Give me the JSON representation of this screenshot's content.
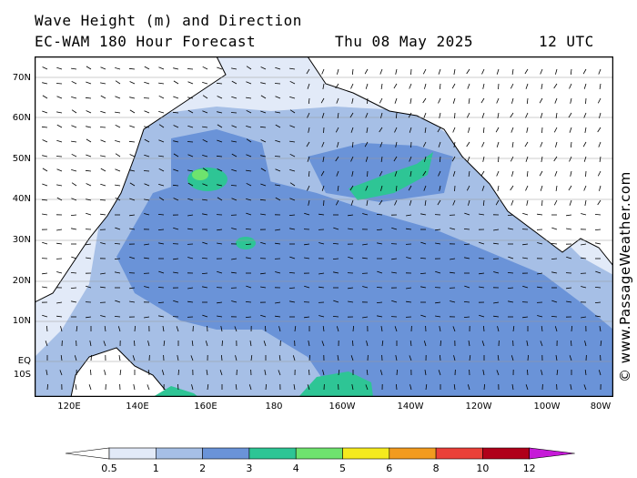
{
  "header": {
    "title_line1": "Wave Height (m) and Direction",
    "title_line2": "EC-WAM 180 Hour Forecast",
    "date": "Thu 08 May 2025",
    "time": "12 UTC"
  },
  "map": {
    "lat_labels": [
      "70N",
      "60N",
      "50N",
      "40N",
      "30N",
      "20N",
      "10N",
      "EQ",
      "10S"
    ],
    "lon_labels": [
      "120E",
      "140E",
      "160E",
      "180",
      "160W",
      "140W",
      "120W",
      "100W",
      "80W"
    ],
    "credit": "© www.PassageWeather.com"
  },
  "legend": {
    "unit": "m",
    "ticks": [
      "0.5",
      "1",
      "2",
      "3",
      "4",
      "5",
      "6",
      "8",
      "10",
      "12"
    ],
    "colors": [
      "#e2eaf8",
      "#a6bfe6",
      "#6a93d8",
      "#2ec595",
      "#6ee36e",
      "#f5ea1e",
      "#f29b1f",
      "#ea4038",
      "#b0001a",
      "#c61ad8"
    ]
  }
}
